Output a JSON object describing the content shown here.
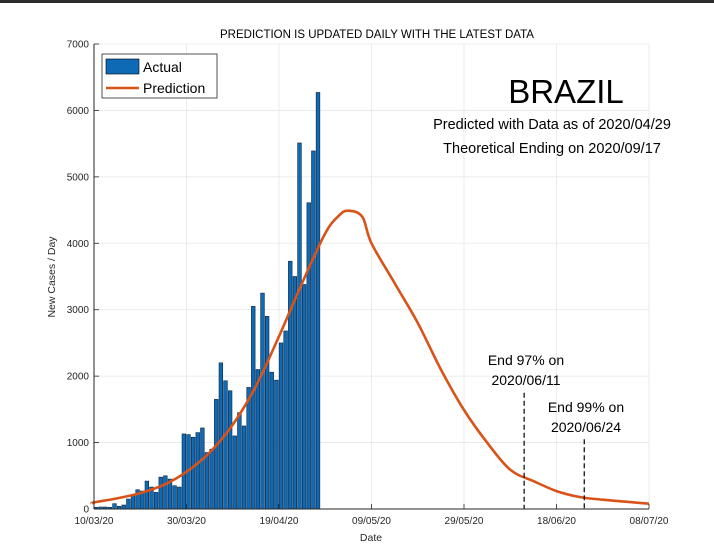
{
  "chart_data": {
    "type": "bar",
    "title": "PREDICTION IS UPDATED DAILY WITH THE LATEST DATA",
    "xlabel": "Date",
    "ylabel": "New Cases / Day",
    "ylim": [
      0,
      7000
    ],
    "yticks": [
      0,
      1000,
      2000,
      3000,
      4000,
      5000,
      6000,
      7000
    ],
    "x_start_date": "10/03/20",
    "x_range_days": [
      0,
      120
    ],
    "xticks": [
      {
        "day": 0,
        "label": "10/03/20"
      },
      {
        "day": 20,
        "label": "30/03/20"
      },
      {
        "day": 40,
        "label": "19/04/20"
      },
      {
        "day": 60,
        "label": "09/05/20"
      },
      {
        "day": 80,
        "label": "29/05/20"
      },
      {
        "day": 100,
        "label": "18/06/20"
      },
      {
        "day": 120,
        "label": "08/07/20"
      }
    ],
    "grid": true,
    "legend": {
      "placement": "top-left",
      "entries": [
        "Actual",
        "Prediction"
      ]
    },
    "series": [
      {
        "name": "Actual",
        "kind": "bar",
        "color": "#0e6ab5",
        "x_days": [
          0,
          1,
          2,
          3,
          4,
          5,
          6,
          7,
          8,
          9,
          10,
          11,
          12,
          13,
          14,
          15,
          16,
          17,
          18,
          19,
          20,
          21,
          22,
          23,
          24,
          25,
          26,
          27,
          28,
          29,
          30,
          31,
          32,
          33,
          34,
          35,
          36,
          37,
          38,
          39,
          40,
          41,
          42,
          43,
          44,
          45,
          46,
          47,
          48,
          49,
          50
        ],
        "values": [
          25,
          30,
          30,
          25,
          80,
          40,
          60,
          150,
          200,
          290,
          270,
          420,
          330,
          250,
          480,
          500,
          450,
          350,
          330,
          1130,
          1120,
          1080,
          1150,
          1220,
          850,
          900,
          1650,
          2200,
          1930,
          1780,
          1100,
          1450,
          1250,
          1830,
          3050,
          2100,
          3250,
          2900,
          2060,
          1940,
          2500,
          2680,
          3730,
          3500,
          5510,
          3380,
          4610,
          5390,
          6270,
          0,
          0
        ]
      },
      {
        "name": "Prediction",
        "kind": "line",
        "color": "#d95319",
        "x_days": [
          -2,
          0,
          5,
          10,
          15,
          20,
          25,
          30,
          35,
          40,
          45,
          50,
          53,
          55,
          58,
          60,
          65,
          70,
          75,
          80,
          85,
          90,
          95,
          100,
          105,
          110,
          115,
          120,
          122
        ],
        "values": [
          80,
          100,
          160,
          240,
          360,
          560,
          850,
          1270,
          1850,
          2600,
          3400,
          4150,
          4420,
          4490,
          4400,
          4000,
          3400,
          2800,
          2100,
          1490,
          1000,
          590,
          420,
          270,
          180,
          140,
          110,
          80,
          70
        ]
      }
    ],
    "annotations": [
      {
        "text_lines": [
          "BRAZIL"
        ],
        "role": "country"
      },
      {
        "text_lines": [
          "Predicted with Data as of 2020/04/29"
        ],
        "role": "subtitle"
      },
      {
        "text_lines": [
          "Theoretical Ending on 2020/09/17"
        ],
        "role": "subtitle"
      },
      {
        "text_lines": [
          "End 97% on",
          "2020/06/11"
        ],
        "marker_day": 93,
        "marker_value": 1750
      },
      {
        "text_lines": [
          "End 99% on",
          "2020/06/24"
        ],
        "marker_day": 106,
        "marker_value": 1050
      }
    ]
  }
}
